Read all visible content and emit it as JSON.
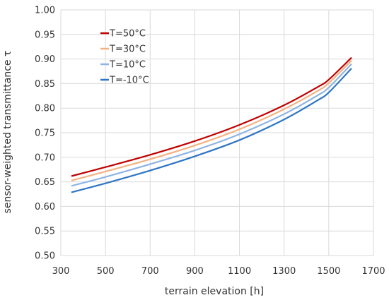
{
  "chart_data": {
    "type": "line",
    "xlabel": "terrain elevation [h]",
    "ylabel": "sensor-weighted transmittance τ",
    "xlim": [
      300,
      1700
    ],
    "ylim": [
      0.5,
      1.0
    ],
    "xticks": [
      300,
      500,
      700,
      900,
      1100,
      1300,
      1500,
      1700
    ],
    "yticks": [
      0.5,
      0.55,
      0.6,
      0.65,
      0.7,
      0.75,
      0.8,
      0.85,
      0.9,
      0.95,
      1.0
    ],
    "ytick_labels": [
      "0.50",
      "0.55",
      "0.60",
      "0.65",
      "0.70",
      "0.75",
      "0.80",
      "0.85",
      "0.90",
      "0.95",
      "1.00"
    ],
    "grid": true,
    "legend_position": "top-left",
    "x": [
      350,
      500,
      700,
      900,
      1100,
      1300,
      1450,
      1500,
      1600
    ],
    "series": [
      {
        "name": "T=50°C",
        "color": "#c00000",
        "values": [
          0.662,
          0.68,
          0.705,
          0.733,
          0.766,
          0.806,
          0.843,
          0.858,
          0.902
        ]
      },
      {
        "name": "T=30°C",
        "color": "#f4b183",
        "values": [
          0.653,
          0.671,
          0.696,
          0.724,
          0.757,
          0.798,
          0.835,
          0.851,
          0.896
        ]
      },
      {
        "name": "T=10°C",
        "color": "#8eb4e3",
        "values": [
          0.642,
          0.66,
          0.686,
          0.714,
          0.747,
          0.788,
          0.826,
          0.842,
          0.889
        ]
      },
      {
        "name": "T=-10°C",
        "color": "#2e75c4",
        "values": [
          0.629,
          0.647,
          0.673,
          0.702,
          0.735,
          0.777,
          0.816,
          0.832,
          0.88
        ]
      }
    ]
  }
}
